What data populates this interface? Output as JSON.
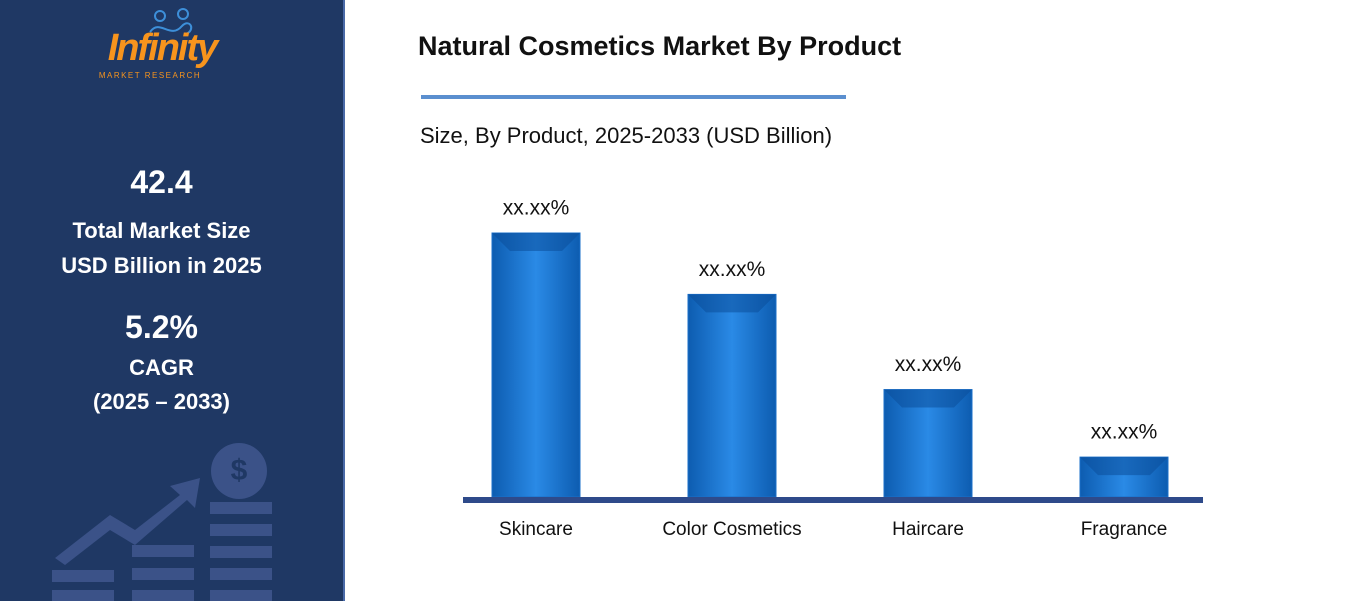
{
  "sidebar": {
    "logo": {
      "name": "Infinity",
      "tagline": "MARKET RESEARCH"
    },
    "market_size": {
      "value": "42.4",
      "line1": "Total Market Size",
      "line2": "USD Billion in 2025"
    },
    "cagr": {
      "value": "5.2%",
      "line1": "CAGR",
      "line2": "(2025 – 2033)"
    }
  },
  "chart_data": {
    "type": "bar",
    "title": "Natural Cosmetics Market By Product",
    "subtitle": "Size, By Product, 2025-2033 (USD Billion)",
    "categories": [
      "Skincare",
      "Color Cosmetics",
      "Haircare",
      "Fragrance"
    ],
    "values": [
      43,
      33,
      17.5,
      6.5
    ],
    "value_labels": [
      "xx.xx%",
      "xx.xx%",
      "xx.xx%",
      "xx.xx%"
    ],
    "color": "#1a6fc9"
  }
}
